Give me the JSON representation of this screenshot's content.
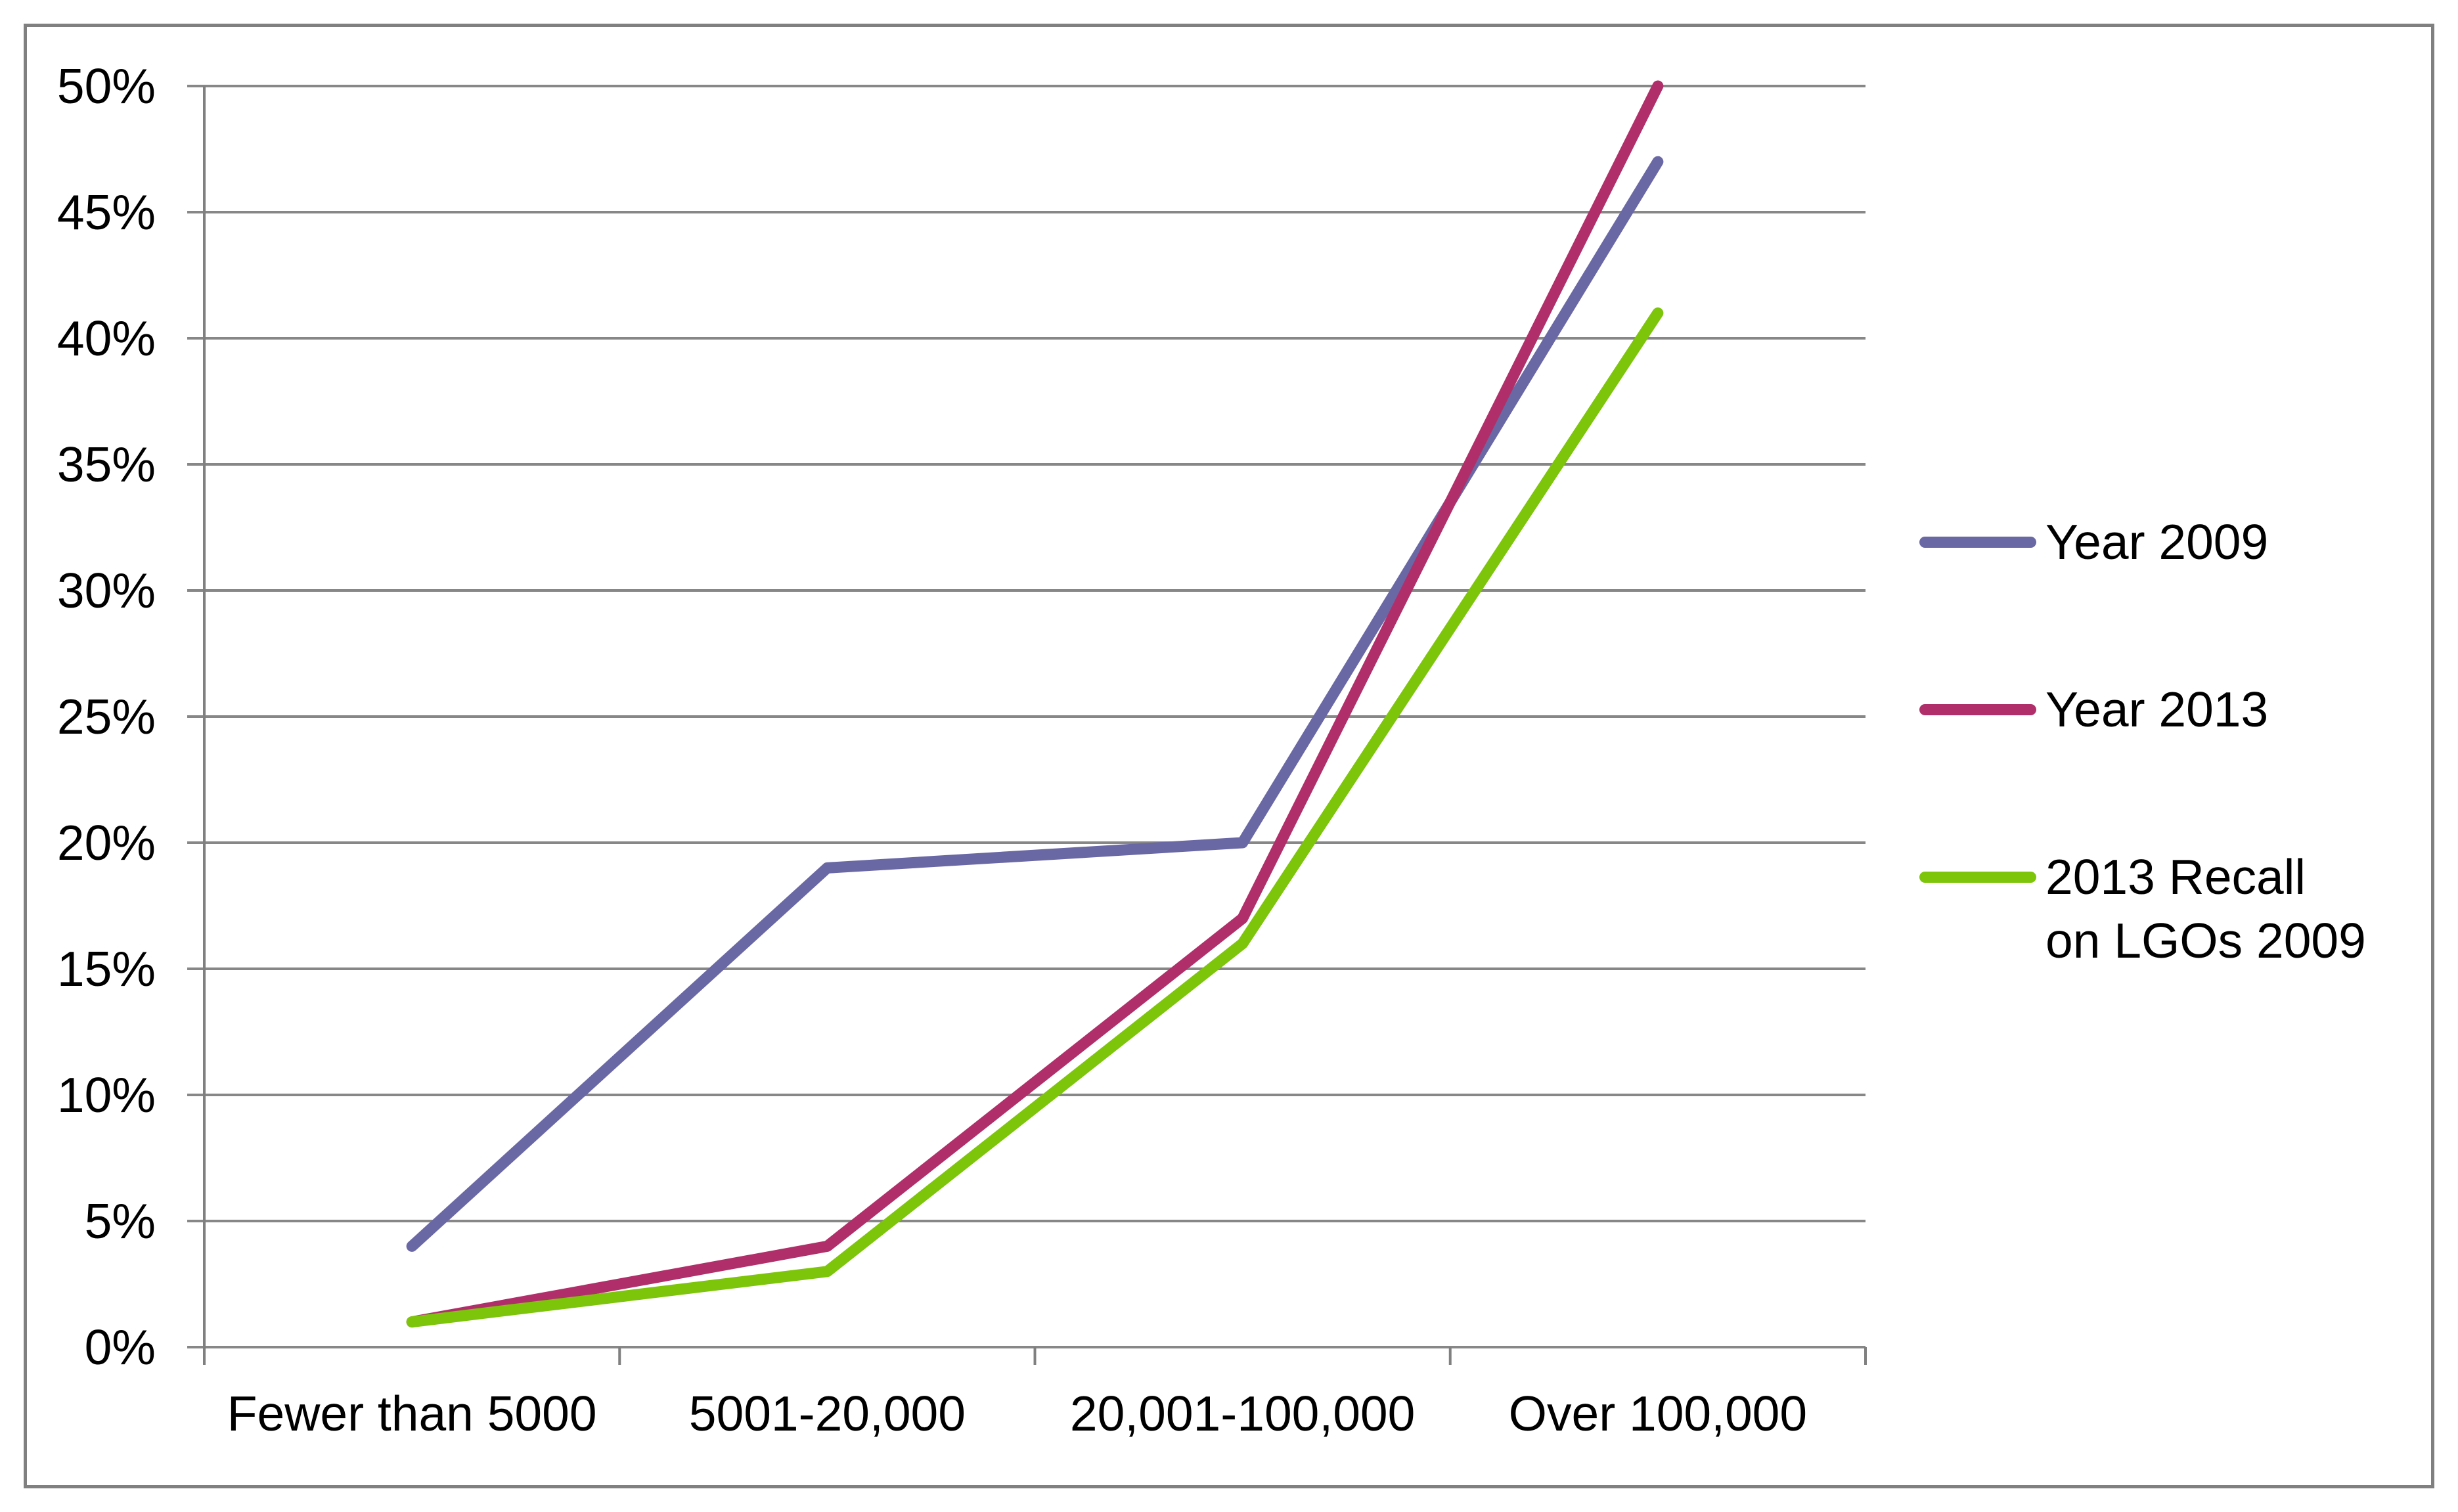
{
  "chart_data": {
    "type": "line",
    "categories": [
      "Fewer than 5000",
      "5001-20,000",
      "20,001-100,000",
      "Over 100,000"
    ],
    "series": [
      {
        "name": "Year 2009",
        "color": "#6A68A4",
        "values": [
          4,
          19,
          20,
          47
        ]
      },
      {
        "name": "Year 2013",
        "color": "#B02F6A",
        "values": [
          1,
          4,
          17,
          50
        ]
      },
      {
        "name": "2013 Recall on LGOs 2009",
        "color": "#7DC50A",
        "values": [
          1,
          3,
          16,
          41
        ]
      }
    ],
    "title": "",
    "xlabel": "",
    "ylabel": "",
    "ylim": [
      0,
      50
    ],
    "ytick_step": 5,
    "ytick_labels": [
      "0%",
      "5%",
      "10%",
      "15%",
      "20%",
      "25%",
      "30%",
      "35%",
      "40%",
      "45%",
      "50%"
    ],
    "grid": true,
    "legend_position": "right"
  },
  "legend": {
    "entries": [
      {
        "label_lines": [
          "Year 2009"
        ],
        "color": "#6A68A4"
      },
      {
        "label_lines": [
          "Year 2013"
        ],
        "color": "#B02F6A"
      },
      {
        "label_lines": [
          "2013 Recall",
          "on LGOs 2009"
        ],
        "color": "#7DC50A"
      }
    ]
  },
  "styles": {
    "background": "#FFFFFF",
    "gridline_color": "#878787",
    "axis_color": "#808080",
    "border_color": "#808080",
    "text_color": "#000000"
  }
}
